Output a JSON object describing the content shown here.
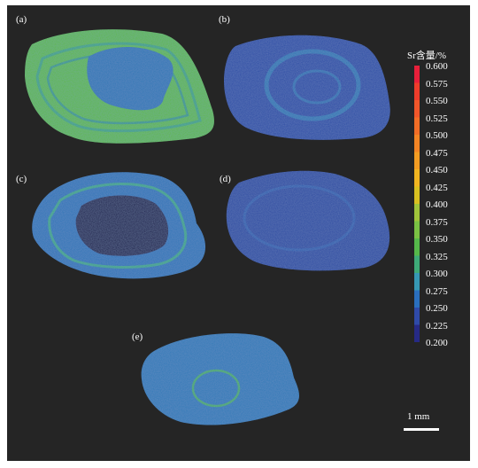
{
  "panels": [
    {
      "label": "(a)"
    },
    {
      "label": "(b)"
    },
    {
      "label": "(c)"
    },
    {
      "label": "(d)"
    },
    {
      "label": "(e)"
    }
  ],
  "legend": {
    "title": "Sr含量/%",
    "ticks": [
      "0.600",
      "0.575",
      "0.550",
      "0.525",
      "0.500",
      "0.475",
      "0.450",
      "0.425",
      "0.400",
      "0.375",
      "0.350",
      "0.325",
      "0.300",
      "0.275",
      "0.250",
      "0.225",
      "0.200"
    ],
    "colors": [
      "#e81f3a",
      "#ee3c2b",
      "#f1562a",
      "#f26d26",
      "#f38424",
      "#f39c22",
      "#f1b520",
      "#d8c020",
      "#a0c43a",
      "#7ac243",
      "#55b84a",
      "#3eaa78",
      "#3698b4",
      "#2a6fbe",
      "#2f4aa8",
      "#262a86"
    ]
  },
  "scale": {
    "label": "1 mm"
  }
}
